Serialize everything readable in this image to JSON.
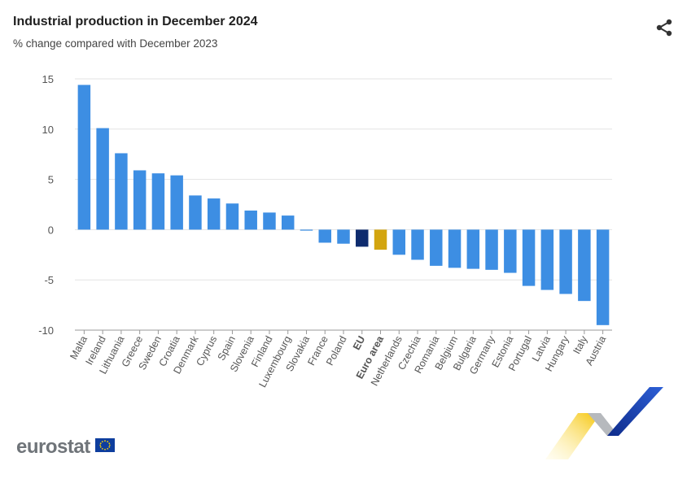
{
  "header": {
    "title": "Industrial production in December 2024",
    "subtitle": "% change compared with December 2023"
  },
  "footer": {
    "logo_text": "eurostat"
  },
  "icons": {
    "share": "share-icon",
    "flag": "eu-flag-icon"
  },
  "colors": {
    "bar": "#3d8ee3",
    "eu": "#0e2b6e",
    "euro_area": "#d3a50f",
    "grid": "#e3e3e3",
    "axis_text": "#555555"
  },
  "chart_data": {
    "type": "bar",
    "title": "Industrial production in December 2024",
    "subtitle": "% change compared with December 2023",
    "categories": [
      "Malta",
      "Ireland",
      "Lithuania",
      "Greece",
      "Sweden",
      "Croatia",
      "Denmark",
      "Cyprus",
      "Spain",
      "Slovenia",
      "Finland",
      "Luxembourg",
      "Slovakia",
      "France",
      "Poland",
      "EU",
      "Euro area",
      "Netherlands",
      "Czechia",
      "Romania",
      "Belgium",
      "Bulgaria",
      "Germany",
      "Estonia",
      "Portugal",
      "Latvia",
      "Hungary",
      "Italy",
      "Austria"
    ],
    "values": [
      14.4,
      10.1,
      7.6,
      5.9,
      5.6,
      5.4,
      3.4,
      3.1,
      2.6,
      1.9,
      1.7,
      1.4,
      -0.1,
      -1.3,
      -1.4,
      -1.7,
      -2.0,
      -2.5,
      -3.0,
      -3.6,
      -3.8,
      -3.9,
      -4.0,
      -4.3,
      -5.6,
      -6.0,
      -6.4,
      -7.1,
      -9.5
    ],
    "highlight": {
      "EU": "eu",
      "Euro area": "euro_area"
    },
    "bold_categories": [
      "EU",
      "Euro area"
    ],
    "yticks": [
      15,
      10,
      5,
      0,
      -5,
      -10
    ],
    "ylim": [
      -10,
      15
    ],
    "grid": true,
    "xlabel": "",
    "ylabel": ""
  }
}
